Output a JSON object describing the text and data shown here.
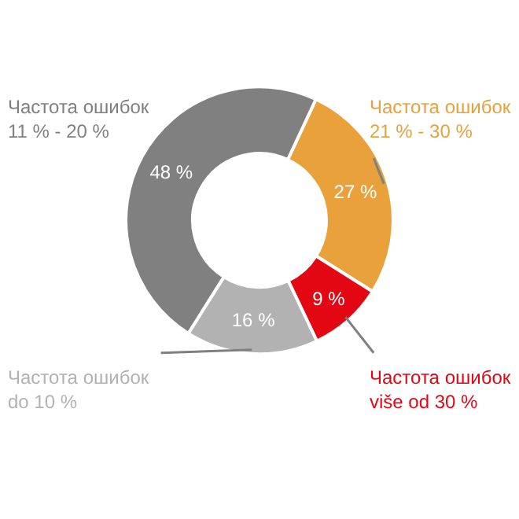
{
  "chart_data": {
    "type": "donut",
    "categories": [
      "Частота ошибок\n21 % - 30 %",
      "Частота ошибок\nviše od 30 %",
      "Частота ошибок\ndo 10 %",
      "Частота ошибок\n11 % - 20 %"
    ],
    "values": [
      27,
      9,
      16,
      48
    ],
    "value_labels": [
      "27 %",
      "9 %",
      "16 %",
      "48 %"
    ],
    "colors": [
      "#e9a13b",
      "#e30613",
      "#b2b2b2",
      "#808080"
    ],
    "legend": false
  }
}
